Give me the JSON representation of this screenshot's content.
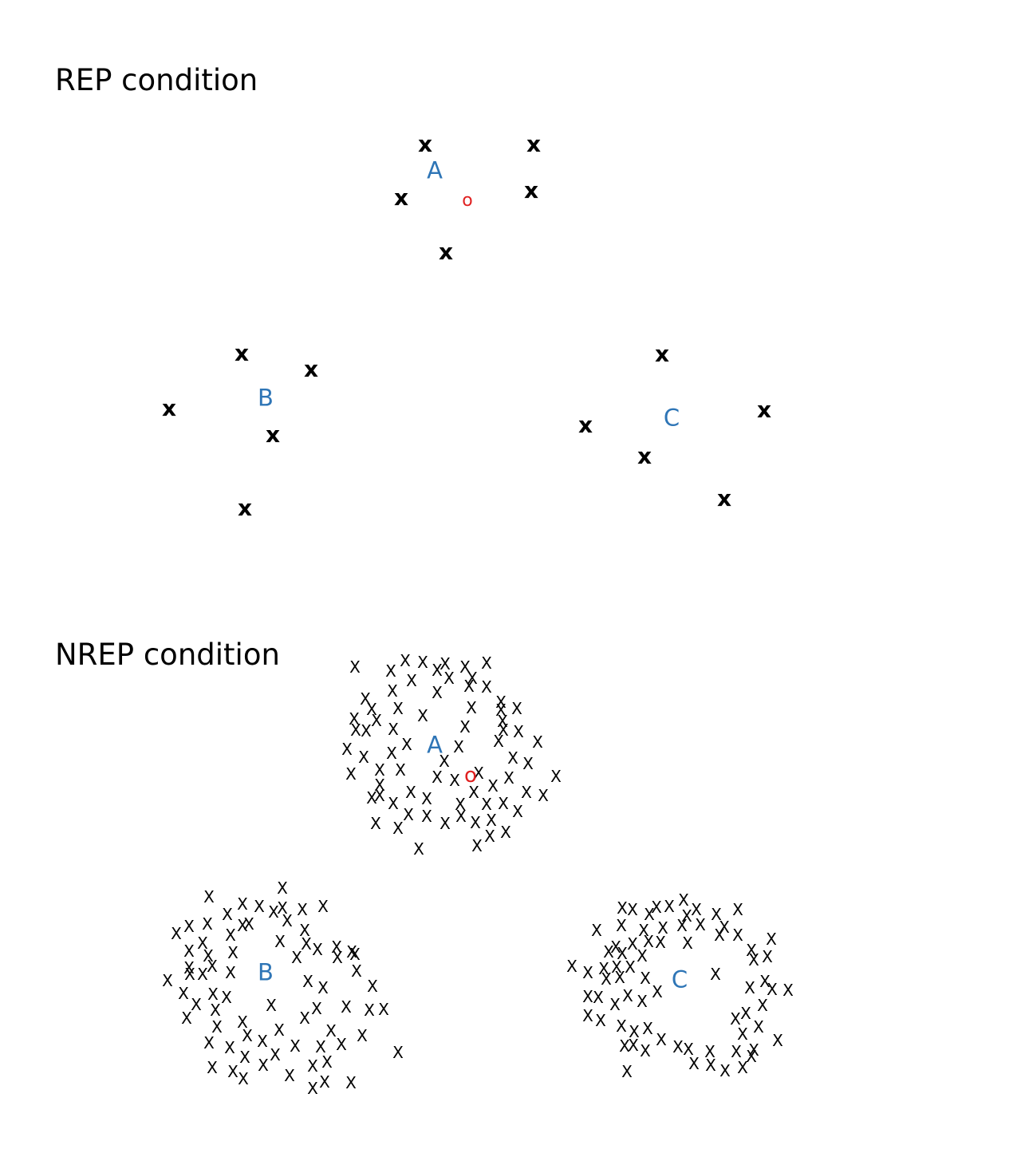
{
  "rep_title": "REP condition",
  "nrep_title": "NREP condition",
  "colors": {
    "label": "#2e75b6",
    "target": "#e02020",
    "mark": "#000000"
  },
  "rep": {
    "distractor_char": "x",
    "clusters": [
      {
        "label": "A"
      },
      {
        "label": "B"
      },
      {
        "label": "C"
      }
    ],
    "target_char": "o"
  },
  "nrep": {
    "distractor_char": "X",
    "clusters": [
      {
        "label": "A"
      },
      {
        "label": "B"
      },
      {
        "label": "C"
      }
    ],
    "target_char": "o"
  }
}
